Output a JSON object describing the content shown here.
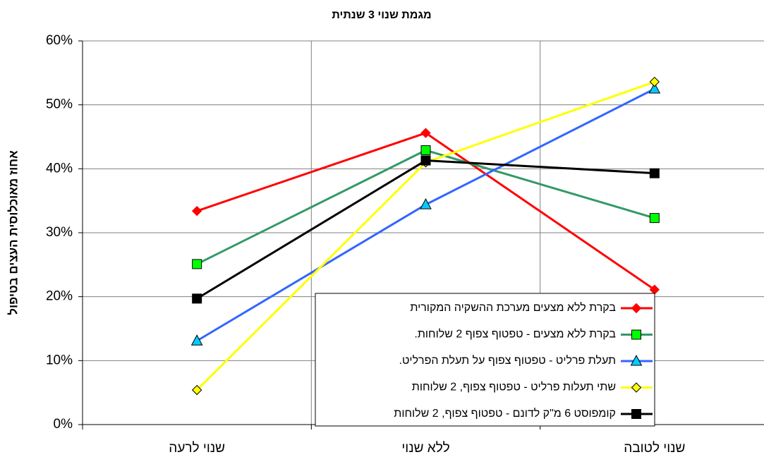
{
  "chart_data": {
    "type": "line",
    "title": "מגמת שנוי 3 שנתית",
    "y_axis_label": "אחוז מאוכלוסית העצים בטיפול",
    "categories": [
      "שנוי לרעה",
      "ללא שנוי",
      "שנוי לטובה"
    ],
    "ylim": [
      0,
      60
    ],
    "yticks": [
      {
        "value": 0,
        "label": "0%"
      },
      {
        "value": 10,
        "label": "10%"
      },
      {
        "value": 20,
        "label": "20%"
      },
      {
        "value": 30,
        "label": "30%"
      },
      {
        "value": 40,
        "label": "40%"
      },
      {
        "value": 50,
        "label": "50%"
      },
      {
        "value": 60,
        "label": "60%"
      }
    ],
    "grid": true,
    "legend": "lower right",
    "series": [
      {
        "name": "בקרת ללא מצעים מערכת ההשקיה המקורית",
        "color": "#ff0000",
        "marker": "diamond",
        "marker_color": "#ff0000",
        "values": [
          33.4,
          45.6,
          21.1
        ]
      },
      {
        "name": "בקרת ללא מצעים - טפטוף צפוף 2 שלוחות.",
        "color": "#339966",
        "marker": "square",
        "marker_color": "#00ff00",
        "values": [
          25.1,
          42.9,
          32.3
        ]
      },
      {
        "name": "תעלת פרליט - טפטוף צפוף על תעלת הפרליט.",
        "color": "#3366ff",
        "marker": "triangle",
        "marker_color": "#00ccff",
        "values": [
          13.1,
          34.4,
          52.5
        ]
      },
      {
        "name": "שתי תעלות פרליט - טפטוף צפוף, 2 שלוחות",
        "color": "#ffff00",
        "marker": "diamond",
        "marker_color": "#ffff00",
        "values": [
          5.4,
          41.0,
          53.6
        ]
      },
      {
        "name": "קומפוסט 6 מ\"ק לדונם - טפטוף צפוף, 2 שלוחות",
        "color": "#000000",
        "marker": "square",
        "marker_color": "#000000",
        "values": [
          19.7,
          41.3,
          39.3
        ]
      }
    ]
  }
}
